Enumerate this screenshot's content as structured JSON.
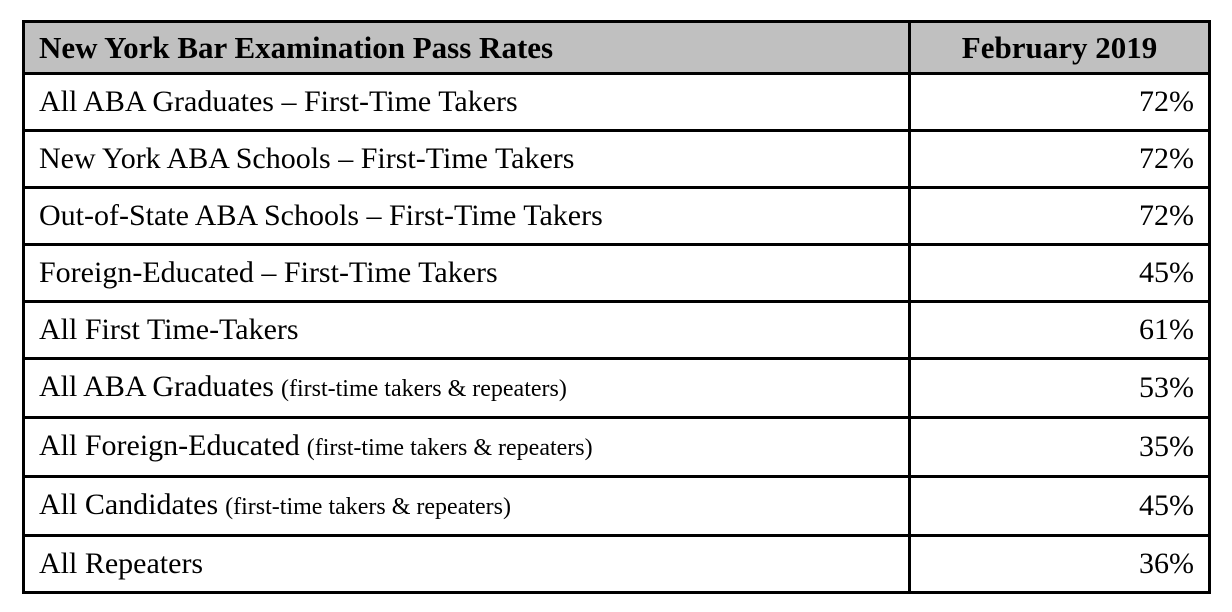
{
  "table": {
    "title": "New York Bar Examination Pass Rates",
    "period": "February 2019",
    "rows": [
      {
        "label": "All ABA Graduates – First-Time Takers",
        "note": "",
        "value": "72%"
      },
      {
        "label": "New York ABA Schools – First-Time Takers",
        "note": "",
        "value": "72%"
      },
      {
        "label": "Out-of-State ABA Schools – First-Time Takers",
        "note": "",
        "value": "72%"
      },
      {
        "label": "Foreign-Educated – First-Time Takers",
        "note": "",
        "value": "45%"
      },
      {
        "label": "All First Time-Takers",
        "note": "",
        "value": "61%"
      },
      {
        "label": "All ABA Graduates",
        "note": "(first-time takers & repeaters)",
        "value": "53%"
      },
      {
        "label": "All Foreign-Educated",
        "note": "(first-time takers & repeaters)",
        "value": "35%"
      },
      {
        "label": "All Candidates",
        "note": "(first-time takers & repeaters)",
        "value": "45%"
      },
      {
        "label": "All Repeaters",
        "note": "",
        "value": "36%"
      }
    ]
  },
  "colors": {
    "header_background": "#c0c0c0",
    "border": "#000000",
    "text": "#000000",
    "row_background": "#ffffff"
  },
  "chart_data": {
    "type": "table",
    "title": "New York Bar Examination Pass Rates",
    "columns": [
      "New York Bar Examination Pass Rates",
      "February 2019"
    ],
    "categories": [
      "All ABA Graduates – First-Time Takers",
      "New York ABA Schools – First-Time Takers",
      "Out-of-State ABA Schools – First-Time Takers",
      "Foreign-Educated – First-Time Takers",
      "All First Time-Takers",
      "All ABA Graduates (first-time takers & repeaters)",
      "All Foreign-Educated (first-time takers & repeaters)",
      "All Candidates (first-time takers & repeaters)",
      "All Repeaters"
    ],
    "values": [
      72,
      72,
      72,
      45,
      61,
      53,
      35,
      45,
      36
    ],
    "value_unit": "%"
  }
}
